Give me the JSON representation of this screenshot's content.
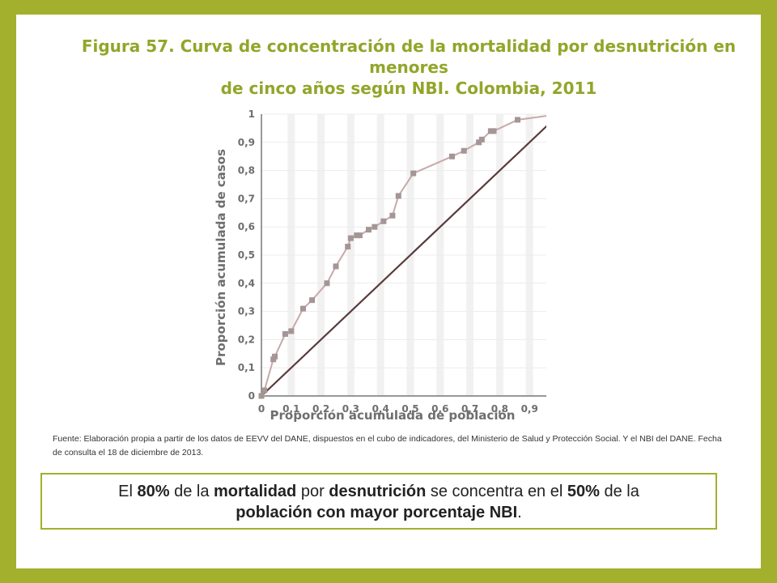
{
  "title_line1": "Figura 57. Curva de concentración de la mortalidad por desnutrición en menores",
  "title_line2": "de cinco años según NBI. Colombia, 2011",
  "source": "Fuente: Elaboración propia a partir de los datos de EEVV del DANE, dispuestos en el cubo de indicadores, del Ministerio de Salud y Protección Social. Y el NBI del DANE. Fecha de consulta el 18 de diciembre de 2013.",
  "callout": {
    "p1": "El ",
    "b1": "80%",
    "p2": " de la ",
    "b2": "mortalidad",
    "p3": " por ",
    "b3": "desnutrición",
    "p4": " se concentra en el ",
    "b4": "50%",
    "p5": " de la",
    "b5": "población con mayor porcentaje NBI",
    "p6": "."
  },
  "colors": {
    "background": "#a2b02d",
    "title": "#93a52a",
    "curve": "#c8a9a9",
    "marker": "#a59595",
    "diagonal": "#5a3a3a"
  },
  "chart_data": {
    "type": "line",
    "xlabel": "Proporción acumulada de población",
    "ylabel": "Proporción acumulada de casos",
    "xlim": [
      0,
      1
    ],
    "ylim": [
      0,
      1
    ],
    "x_ticks": [
      "0",
      "0,1",
      "0,2",
      "0,3",
      "0,4",
      "0,5",
      "0,6",
      "0,7",
      "0,8",
      "0,9",
      "1"
    ],
    "y_ticks": [
      "0",
      "0,1",
      "0,2",
      "0,3",
      "0,4",
      "0,5",
      "0,6",
      "0,7",
      "0,8",
      "0,9",
      "1"
    ],
    "grid": true,
    "series": [
      {
        "points": [
          [
            0,
            0
          ],
          [
            0.01,
            0.02
          ],
          [
            0.04,
            0.13
          ],
          [
            0.045,
            0.14
          ],
          [
            0.08,
            0.22
          ],
          [
            0.1,
            0.23
          ],
          [
            0.14,
            0.31
          ],
          [
            0.17,
            0.34
          ],
          [
            0.22,
            0.4
          ],
          [
            0.25,
            0.46
          ],
          [
            0.29,
            0.53
          ],
          [
            0.3,
            0.56
          ],
          [
            0.32,
            0.57
          ],
          [
            0.33,
            0.57
          ],
          [
            0.36,
            0.59
          ],
          [
            0.38,
            0.6
          ],
          [
            0.41,
            0.62
          ],
          [
            0.44,
            0.64
          ],
          [
            0.46,
            0.71
          ],
          [
            0.51,
            0.79
          ],
          [
            0.64,
            0.85
          ],
          [
            0.68,
            0.87
          ],
          [
            0.73,
            0.9
          ],
          [
            0.74,
            0.91
          ],
          [
            0.77,
            0.94
          ],
          [
            0.78,
            0.94
          ],
          [
            0.86,
            0.98
          ],
          [
            1,
            1
          ]
        ]
      },
      {
        "points": [
          [
            0,
            0
          ],
          [
            1,
            1
          ]
        ]
      }
    ]
  }
}
